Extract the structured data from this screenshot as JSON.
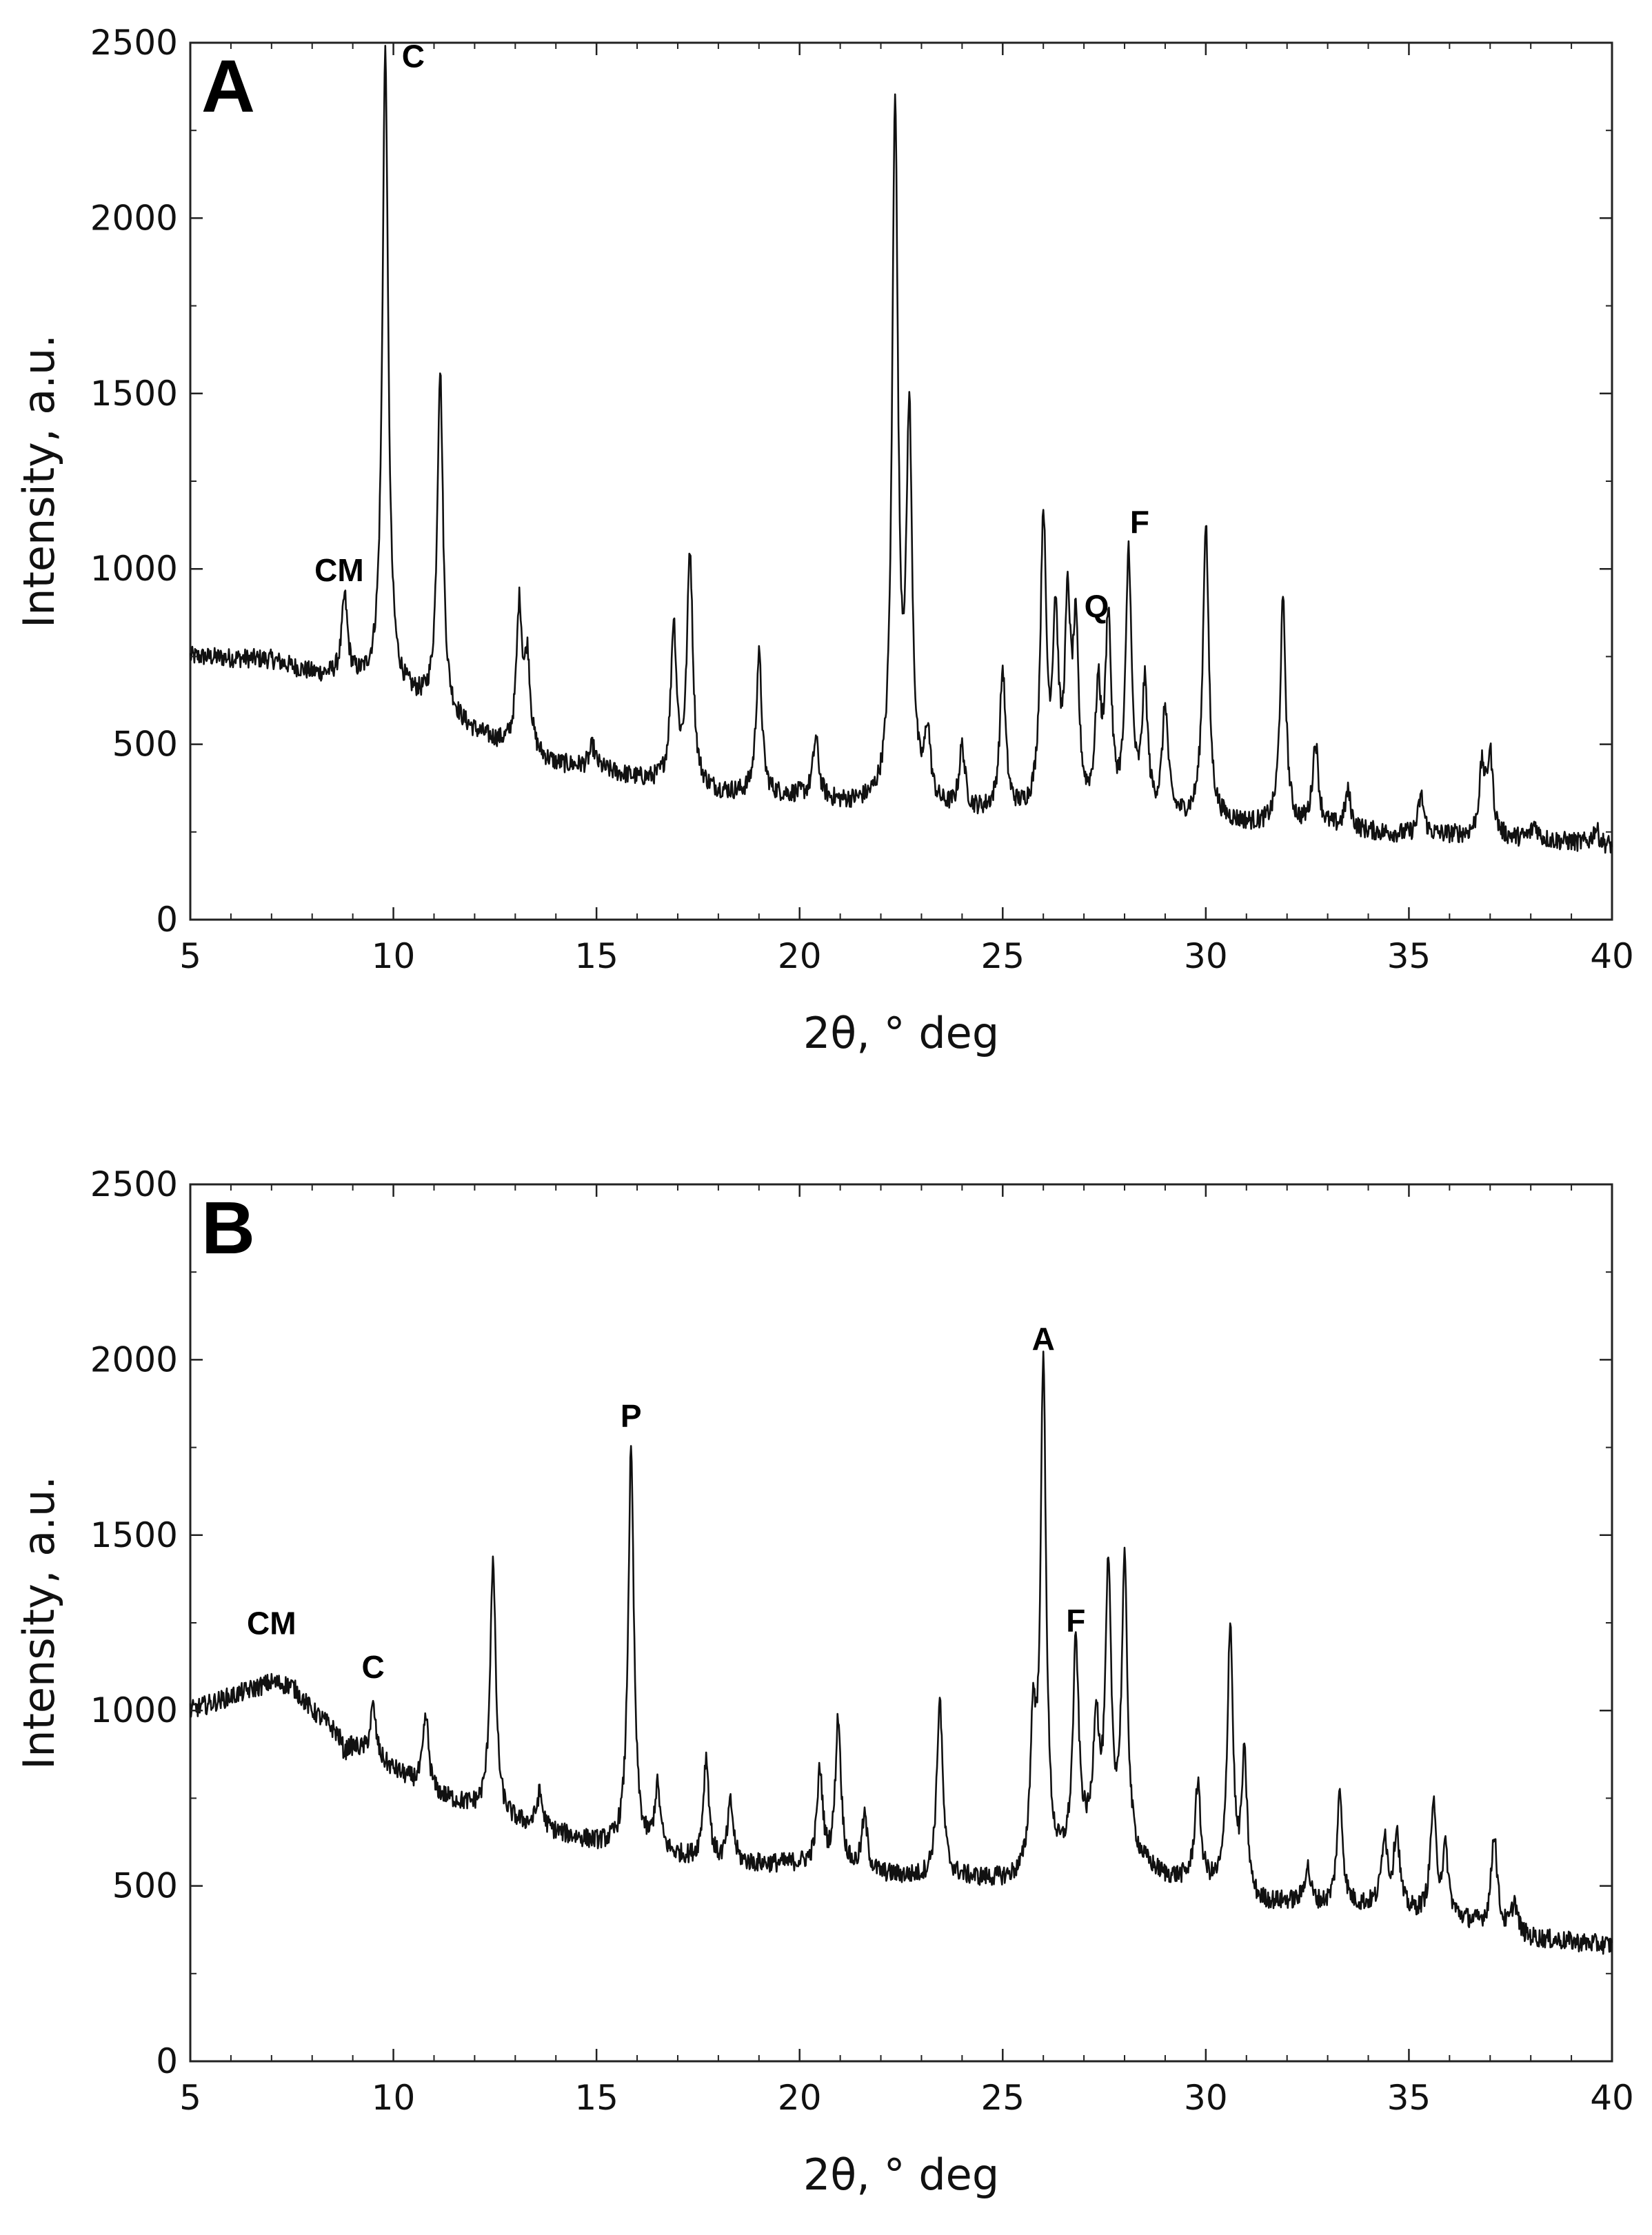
{
  "chart_data": [
    {
      "type": "line",
      "panel_label": "A",
      "xlabel": "2θ, ° deg",
      "ylabel": "Intensity, a.u.",
      "xlim": [
        5,
        40
      ],
      "ylim": [
        0,
        2500
      ],
      "xticks": [
        5,
        10,
        15,
        20,
        25,
        30,
        35,
        40
      ],
      "yticks": [
        0,
        500,
        1000,
        1500,
        2000,
        2500
      ],
      "grid": false,
      "baseline": [
        [
          5,
          750
        ],
        [
          7,
          740
        ],
        [
          8,
          700
        ],
        [
          9,
          680
        ],
        [
          10,
          650
        ],
        [
          11,
          600
        ],
        [
          12,
          530
        ],
        [
          13,
          480
        ],
        [
          14,
          440
        ],
        [
          15,
          430
        ],
        [
          16,
          400
        ],
        [
          17,
          380
        ],
        [
          18,
          360
        ],
        [
          19,
          350
        ],
        [
          20,
          350
        ],
        [
          21,
          330
        ],
        [
          22,
          320
        ],
        [
          23,
          310
        ],
        [
          24,
          300
        ],
        [
          25,
          300
        ],
        [
          26,
          290
        ],
        [
          27,
          280
        ],
        [
          28,
          280
        ],
        [
          29,
          280
        ],
        [
          30,
          280
        ],
        [
          31,
          270
        ],
        [
          32,
          260
        ],
        [
          33,
          260
        ],
        [
          34,
          250
        ],
        [
          35,
          240
        ],
        [
          36,
          240
        ],
        [
          37,
          230
        ],
        [
          38,
          230
        ],
        [
          39,
          220
        ],
        [
          40,
          210
        ]
      ],
      "peaks": [
        [
          8.8,
          910
        ],
        [
          9.8,
          2470
        ],
        [
          11.15,
          1560
        ],
        [
          13.1,
          880
        ],
        [
          13.3,
          720
        ],
        [
          14.9,
          490
        ],
        [
          16.9,
          830
        ],
        [
          17.3,
          1040
        ],
        [
          19.0,
          750
        ],
        [
          20.4,
          510
        ],
        [
          22.35,
          2310
        ],
        [
          22.7,
          1380
        ],
        [
          23.15,
          510
        ],
        [
          24.0,
          480
        ],
        [
          25.0,
          700
        ],
        [
          26.0,
          1120
        ],
        [
          26.3,
          810
        ],
        [
          26.6,
          830
        ],
        [
          26.8,
          760
        ],
        [
          27.35,
          610
        ],
        [
          27.6,
          830
        ],
        [
          28.1,
          1020
        ],
        [
          28.5,
          640
        ],
        [
          29.0,
          590
        ],
        [
          30.0,
          1130
        ],
        [
          31.9,
          900
        ],
        [
          32.7,
          500
        ],
        [
          33.5,
          360
        ],
        [
          35.3,
          350
        ],
        [
          36.8,
          420
        ],
        [
          37.0,
          460
        ],
        [
          38.1,
          270
        ],
        [
          39.6,
          260
        ]
      ],
      "annotations": [
        {
          "text": "CM",
          "x": 8.8,
          "y": 910
        },
        {
          "text": "C",
          "x": 9.8,
          "y": 2470
        },
        {
          "text": "Q",
          "x": 26.6,
          "y": 830
        },
        {
          "text": "F",
          "x": 28.1,
          "y": 1020
        }
      ]
    },
    {
      "type": "line",
      "panel_label": "B",
      "xlabel": "2θ, ° deg",
      "ylabel": "Intensity, a.u.",
      "xlim": [
        5,
        40
      ],
      "ylim": [
        0,
        2500
      ],
      "xticks": [
        5,
        10,
        15,
        20,
        25,
        30,
        35,
        40
      ],
      "yticks": [
        0,
        500,
        1000,
        1500,
        2000,
        2500
      ],
      "grid": false,
      "baseline": [
        [
          5,
          1000
        ],
        [
          6,
          1040
        ],
        [
          7,
          1080
        ],
        [
          7.5,
          1070
        ],
        [
          8,
          1000
        ],
        [
          9,
          900
        ],
        [
          10,
          830
        ],
        [
          11,
          760
        ],
        [
          12,
          720
        ],
        [
          13,
          680
        ],
        [
          14,
          650
        ],
        [
          15,
          620
        ],
        [
          16,
          600
        ],
        [
          17,
          580
        ],
        [
          18,
          560
        ],
        [
          19,
          560
        ],
        [
          20,
          560
        ],
        [
          21,
          540
        ],
        [
          22,
          530
        ],
        [
          23,
          520
        ],
        [
          24,
          520
        ],
        [
          25,
          510
        ],
        [
          26,
          500
        ],
        [
          27,
          600
        ],
        [
          28,
          580
        ],
        [
          28.5,
          550
        ],
        [
          29,
          520
        ],
        [
          30,
          500
        ],
        [
          31,
          440
        ],
        [
          32,
          450
        ],
        [
          33,
          440
        ],
        [
          34,
          440
        ],
        [
          35,
          420
        ],
        [
          36,
          410
        ],
        [
          37,
          380
        ],
        [
          38,
          350
        ],
        [
          39,
          340
        ],
        [
          40,
          330
        ]
      ],
      "peaks": [
        [
          8.8,
          880
        ],
        [
          9.5,
          1010
        ],
        [
          10.8,
          980
        ],
        [
          12.45,
          1420
        ],
        [
          13.6,
          760
        ],
        [
          15.85,
          1730
        ],
        [
          16.5,
          770
        ],
        [
          17.7,
          860
        ],
        [
          18.3,
          730
        ],
        [
          20.5,
          820
        ],
        [
          20.95,
          970
        ],
        [
          21.6,
          690
        ],
        [
          23.45,
          1030
        ],
        [
          25.75,
          910
        ],
        [
          26.0,
          1950
        ],
        [
          26.8,
          1170
        ],
        [
          27.3,
          950
        ],
        [
          27.6,
          1360
        ],
        [
          28.0,
          1390
        ],
        [
          29.8,
          780
        ],
        [
          30.6,
          1230
        ],
        [
          30.95,
          840
        ],
        [
          32.5,
          550
        ],
        [
          33.3,
          760
        ],
        [
          34.4,
          640
        ],
        [
          34.7,
          650
        ],
        [
          35.6,
          720
        ],
        [
          35.9,
          590
        ],
        [
          37.1,
          650
        ],
        [
          37.6,
          450
        ]
      ],
      "annotations": [
        {
          "text": "CM",
          "x": 7.0,
          "y": 1080
        },
        {
          "text": "C",
          "x": 9.5,
          "y": 1010
        },
        {
          "text": "P",
          "x": 15.85,
          "y": 1730
        },
        {
          "text": "A",
          "x": 26.0,
          "y": 1950
        },
        {
          "text": "F",
          "x": 26.8,
          "y": 1170
        }
      ]
    }
  ]
}
